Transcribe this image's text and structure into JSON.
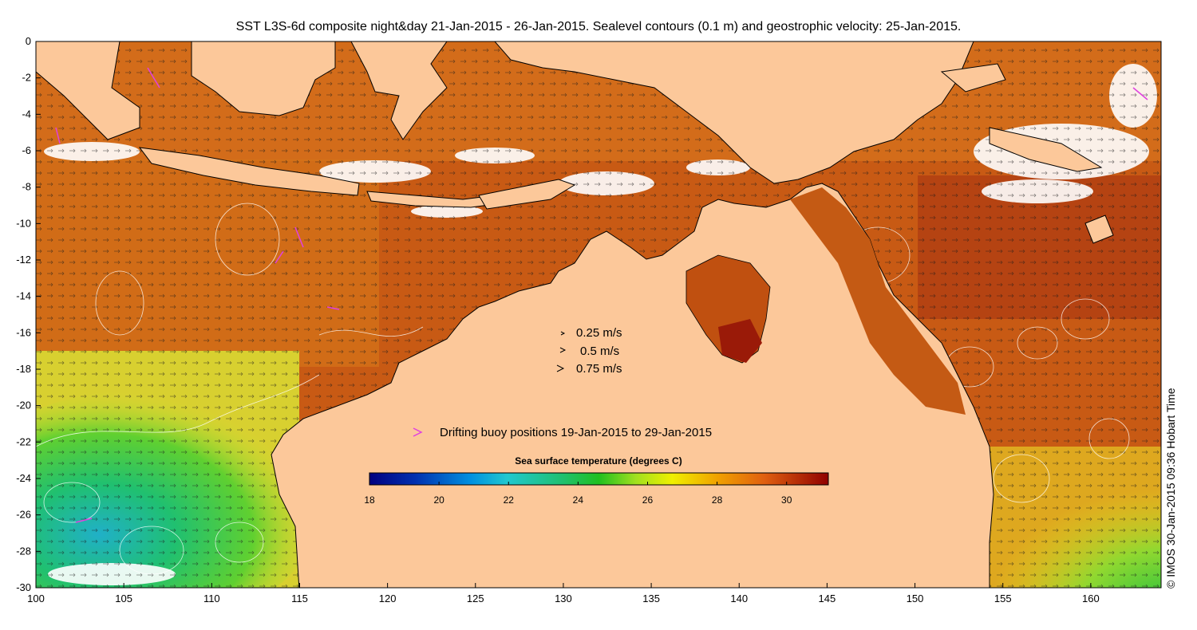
{
  "title": "SST L3S-6d composite night&day 21-Jan-2015 - 26-Jan-2015. Sealevel contours (0.1 m) and geostrophic velocity: 25-Jan-2015.",
  "credit": "© IMOS 30-Jan-2015 09:36 Hobart Time",
  "axes": {
    "x_ticks": [
      "100",
      "105",
      "110",
      "115",
      "120",
      "125",
      "130",
      "135",
      "140",
      "145",
      "150",
      "155",
      "160"
    ],
    "y_ticks": [
      "0",
      "-2",
      "-4",
      "-6",
      "-8",
      "-10",
      "-12",
      "-14",
      "-16",
      "-18",
      "-20",
      "-22",
      "-24",
      "-26",
      "-28",
      "-30"
    ],
    "lon_range": [
      100,
      164
    ],
    "lat_range": [
      -30,
      0
    ]
  },
  "velocity_legend": [
    {
      "label": "0.25 m/s"
    },
    {
      "label": "0.5 m/s"
    },
    {
      "label": "0.75 m/s"
    }
  ],
  "buoy_legend": {
    "label": "Drifting buoy positions 19-Jan-2015 to 29-Jan-2015",
    "color": "#e040e0"
  },
  "colorbar": {
    "title": "Sea surface temperature (degrees C)",
    "ticks": [
      "18",
      "20",
      "22",
      "24",
      "26",
      "28",
      "30"
    ],
    "min": 18,
    "max": 31.2
  },
  "colors": {
    "land": "#fcc89a",
    "warm_sea": "#c85a14",
    "hot_sea": "#a02a0a",
    "mid_sea": "#e08a1a",
    "cool_sea": "#f0c020",
    "yellow_sea": "#d8e030",
    "green_sea": "#30c040",
    "cyan_sea": "#20b0d0",
    "coast": "#000000",
    "contour": "#ffffff",
    "buoy": "#e040e0"
  }
}
